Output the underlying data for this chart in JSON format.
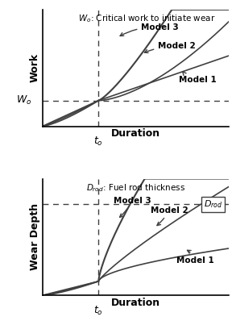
{
  "fig_width": 2.93,
  "fig_height": 3.98,
  "dpi": 100,
  "top_title": "$W_o$: Critical work to initiate wear",
  "top_ylabel": "Work",
  "top_xlabel": "Duration",
  "top_wo_label": "$W_o$",
  "top_to_label": "$t_o$",
  "bottom_title": "$D_{rod}$: Fuel rod thickness",
  "bottom_ylabel": "Wear Depth",
  "bottom_xlabel": "Duration",
  "bottom_drod_label": "$D_{rod}$",
  "bottom_to_label": "$t_o$",
  "model_labels": [
    "Model 3",
    "Model 2",
    "Model 1"
  ],
  "line_color": "#404040",
  "dashed_color": "#404040",
  "background_color": "#ffffff"
}
